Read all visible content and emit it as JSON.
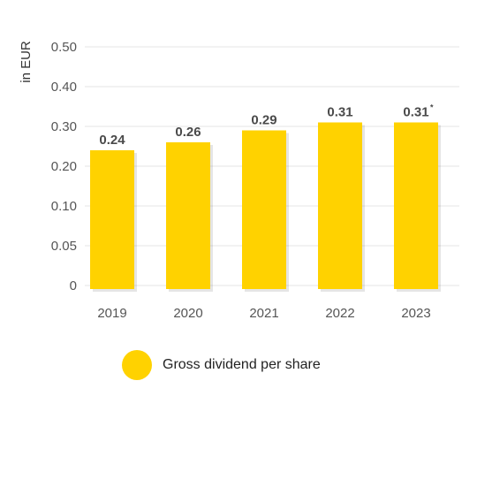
{
  "chart_data": {
    "type": "bar",
    "ylabel": "in EUR",
    "categories": [
      "2019",
      "2020",
      "2021",
      "2022",
      "2023"
    ],
    "series": [
      {
        "name": "Gross dividend per share",
        "values": [
          0.24,
          0.26,
          0.29,
          0.31,
          0.31
        ],
        "data_labels": [
          "0.24",
          "0.26",
          "0.29",
          "0.31",
          "0.31"
        ],
        "data_label_notes": [
          "",
          "",
          "",
          "",
          "*"
        ]
      }
    ],
    "y_ticks": [
      "0",
      "0.05",
      "0.10",
      "0.20",
      "0.30",
      "0.40",
      "0.50"
    ],
    "ylim": [
      0,
      0.5
    ],
    "grid": true,
    "legend_position": "bottom-left",
    "colors": {
      "bar": "#FFD200",
      "grid": "#e6e6e6",
      "label": "#4a4a4a"
    }
  }
}
